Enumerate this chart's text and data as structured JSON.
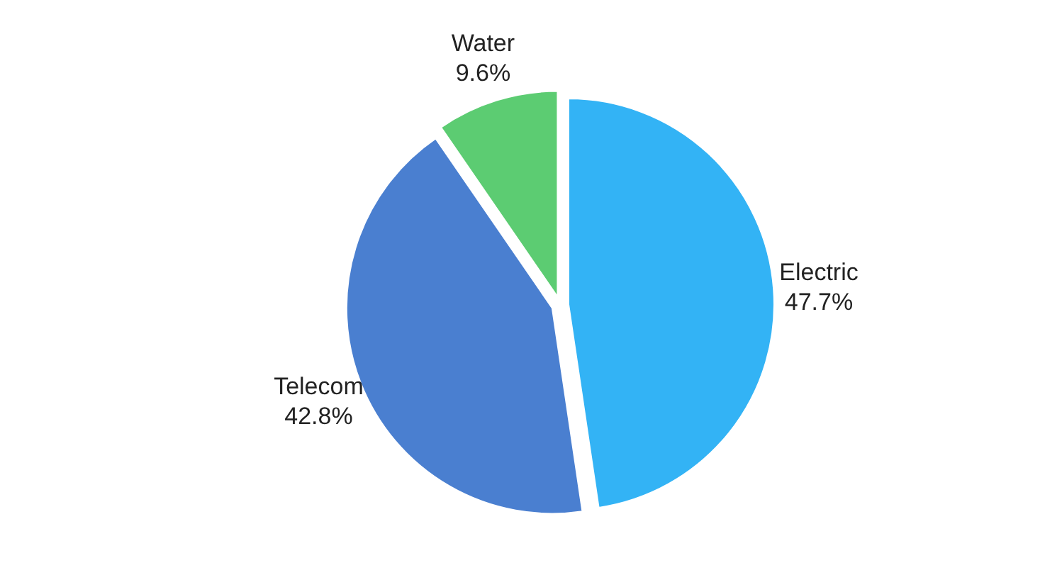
{
  "chart_data": {
    "type": "pie",
    "categories": [
      "Electric",
      "Telecom",
      "Water"
    ],
    "values": [
      47.7,
      42.8,
      9.6
    ],
    "colors": [
      "#33b3f5",
      "#4a7fd0",
      "#5ccc72"
    ],
    "value_labels": [
      "47.7%",
      "42.8%",
      "9.6%"
    ]
  }
}
